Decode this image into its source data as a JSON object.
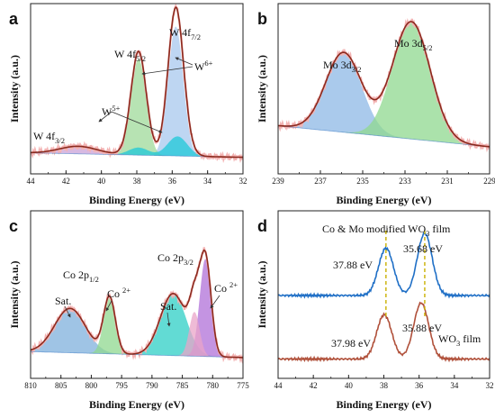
{
  "figure": {
    "panels": [
      {
        "letter": "a",
        "xlabel": "Binding Energy (eV)",
        "ylabel": "Intensity (a.u.)",
        "annotations": [
          {
            "id": "w4f52",
            "parts": [
              [
                "W 4f",
                ""
              ],
              [
                "5/2",
                "sub"
              ]
            ]
          },
          {
            "id": "w4f72",
            "parts": [
              [
                "W 4f",
                ""
              ],
              [
                "7/2",
                "sub"
              ]
            ]
          },
          {
            "id": "w6",
            "parts": [
              [
                "W",
                ""
              ],
              [
                "6+",
                "sup"
              ]
            ]
          },
          {
            "id": "w5",
            "parts": [
              [
                "W",
                ""
              ],
              [
                "5+",
                "sup"
              ]
            ]
          },
          {
            "id": "w4f32",
            "parts": [
              [
                "W 4f",
                ""
              ],
              [
                "3/2",
                "sub"
              ]
            ]
          }
        ]
      },
      {
        "letter": "b",
        "xlabel": "Binding Energy (eV)",
        "ylabel": "Intensity (a.u.)",
        "annotations": [
          {
            "id": "mo32",
            "parts": [
              [
                "Mo 3d",
                ""
              ],
              [
                "3/2",
                "sub"
              ]
            ]
          },
          {
            "id": "mo52",
            "parts": [
              [
                "Mo 3d",
                ""
              ],
              [
                "5/2",
                "sub"
              ]
            ]
          }
        ]
      },
      {
        "letter": "c",
        "xlabel": "Binding Energy (eV)",
        "ylabel": "Intensity (a.u.)",
        "annotations": [
          {
            "id": "co2p12",
            "parts": [
              [
                "Co 2p",
                ""
              ],
              [
                "1/2",
                "sub"
              ]
            ]
          },
          {
            "id": "co2p32",
            "parts": [
              [
                "Co 2p",
                ""
              ],
              [
                "3/2",
                "sub"
              ]
            ]
          },
          {
            "id": "sat1",
            "parts": [
              [
                "Sat.",
                ""
              ]
            ]
          },
          {
            "id": "sat2",
            "parts": [
              [
                "Sat.",
                ""
              ]
            ]
          },
          {
            "id": "co2a",
            "parts": [
              [
                "Co ",
                ""
              ],
              [
                "2+",
                "sup"
              ]
            ]
          },
          {
            "id": "co2b",
            "parts": [
              [
                "Co ",
                ""
              ],
              [
                "2+",
                "sup"
              ]
            ]
          }
        ]
      },
      {
        "letter": "d",
        "xlabel": "Binding Energy (eV)",
        "ylabel": "Intensity (a.u.)",
        "annotations": [
          {
            "id": "modfilm",
            "parts": [
              [
                "Co & Mo modified WO",
                ""
              ],
              [
                "3",
                "sub"
              ],
              [
                " film",
                ""
              ]
            ]
          },
          {
            "id": "e3568",
            "parts": [
              [
                "35.68 eV",
                ""
              ]
            ]
          },
          {
            "id": "e3788",
            "parts": [
              [
                "37.88 eV",
                ""
              ]
            ]
          },
          {
            "id": "e3798",
            "parts": [
              [
                "37.98 eV",
                ""
              ]
            ]
          },
          {
            "id": "e3588",
            "parts": [
              [
                "35.88 eV",
                ""
              ]
            ]
          },
          {
            "id": "wo3film",
            "parts": [
              [
                "WO",
                ""
              ],
              [
                "3",
                "sub"
              ],
              [
                " film",
                ""
              ]
            ]
          }
        ]
      }
    ]
  },
  "colors": {
    "envelope": "#8b2a1e",
    "raw_data": "#f3b3b3",
    "baseline": "#3a7ac4",
    "w4f52_fill": "#9fd99a",
    "w4f72_fill": "#a8c8ee",
    "w5_fill": "#1ec8d8",
    "w4f32_fill": "#c9a2d8",
    "mo32_fill": "#8eb8e6",
    "mo52_fill": "#8fd88f",
    "co_sat1_fill": "#7fb0dc",
    "co_peak1_fill": "#8fd88f",
    "co_sat2_fill": "#2ecfc6",
    "co_peak2_fill": "#b070d8",
    "co_shoulder_fill": "#e9a4c8",
    "modified_film_line": "#1f6fc6",
    "wo3_film_line": "#b0503a",
    "guide_dash": "#c9b000"
  },
  "chart_data": [
    {
      "type": "area",
      "panel": "a",
      "xlabel": "Binding Energy (eV)",
      "ylabel": "Intensity (a.u.)",
      "xlim": [
        44,
        32
      ],
      "xticks": [
        44,
        42,
        40,
        38,
        36,
        34,
        32
      ],
      "yticks": [],
      "grid": false,
      "series": [
        {
          "name": "W 4f7/2 (W6+)",
          "peaks": [
            {
              "center": 35.8,
              "height": 0.86,
              "fwhm": 1.0
            }
          ]
        },
        {
          "name": "W 4f5/2 (W6+)",
          "peaks": [
            {
              "center": 37.9,
              "height": 0.64,
              "fwhm": 1.0
            }
          ]
        },
        {
          "name": "W5+",
          "peaks": [
            {
              "center": 35.7,
              "height": 0.13,
              "fwhm": 1.3
            },
            {
              "center": 37.9,
              "height": 0.05,
              "fwhm": 1.3
            }
          ]
        },
        {
          "name": "W 4f3/2",
          "peaks": [
            {
              "center": 41.3,
              "height": 0.05,
              "fwhm": 2.5
            }
          ]
        }
      ]
    },
    {
      "type": "area",
      "panel": "b",
      "xlabel": "Binding Energy (eV)",
      "ylabel": "Intensity (a.u.)",
      "xlim": [
        239,
        229
      ],
      "xticks": [
        239,
        237,
        235,
        233,
        231,
        229
      ],
      "yticks": [],
      "grid": false,
      "series": [
        {
          "name": "Mo 3d3/2",
          "peaks": [
            {
              "center": 235.9,
              "height": 0.53,
              "fwhm": 2.0
            }
          ]
        },
        {
          "name": "Mo 3d5/2",
          "peaks": [
            {
              "center": 232.7,
              "height": 0.78,
              "fwhm": 2.1
            }
          ]
        }
      ]
    },
    {
      "type": "area",
      "panel": "c",
      "xlabel": "Binding Energy (eV)",
      "ylabel": "Intensity (a.u.)",
      "xlim": [
        810,
        775
      ],
      "xticks": [
        810,
        805,
        800,
        795,
        790,
        785,
        780,
        775
      ],
      "yticks": [],
      "grid": false,
      "series": [
        {
          "name": "Sat. (Co 2p1/2)",
          "peaks": [
            {
              "center": 803.5,
              "height": 0.3,
              "fwhm": 6.0
            }
          ]
        },
        {
          "name": "Co2+ (Co 2p1/2)",
          "peaks": [
            {
              "center": 797.0,
              "height": 0.38,
              "fwhm": 2.3
            }
          ]
        },
        {
          "name": "Sat. (Co 2p3/2)",
          "peaks": [
            {
              "center": 786.5,
              "height": 0.42,
              "fwhm": 5.0
            }
          ]
        },
        {
          "name": "Co2+ (Co 2p3/2)",
          "peaks": [
            {
              "center": 781.2,
              "height": 0.66,
              "fwhm": 2.2
            }
          ]
        },
        {
          "name": "Co 2p3/2 shoulder",
          "peaks": [
            {
              "center": 783.0,
              "height": 0.3,
              "fwhm": 2.0
            }
          ]
        }
      ]
    },
    {
      "type": "line",
      "panel": "d",
      "xlabel": "Binding Energy (eV)",
      "ylabel": "Intensity (a.u.)",
      "xlim": [
        44,
        32
      ],
      "xticks": [
        44,
        42,
        40,
        38,
        36,
        34,
        32
      ],
      "yticks": [],
      "grid": false,
      "series": [
        {
          "name": "Co & Mo modified WO3 film",
          "offset": 0.5,
          "peaks": [
            {
              "center": 37.88,
              "height": 0.32,
              "fwhm": 1.0
            },
            {
              "center": 35.68,
              "height": 0.42,
              "fwhm": 1.0
            }
          ]
        },
        {
          "name": "WO3 film",
          "offset": 0.07,
          "peaks": [
            {
              "center": 37.98,
              "height": 0.3,
              "fwhm": 1.0
            },
            {
              "center": 35.88,
              "height": 0.38,
              "fwhm": 1.0
            }
          ]
        }
      ],
      "peak_markers": [
        37.88,
        35.68
      ]
    }
  ]
}
